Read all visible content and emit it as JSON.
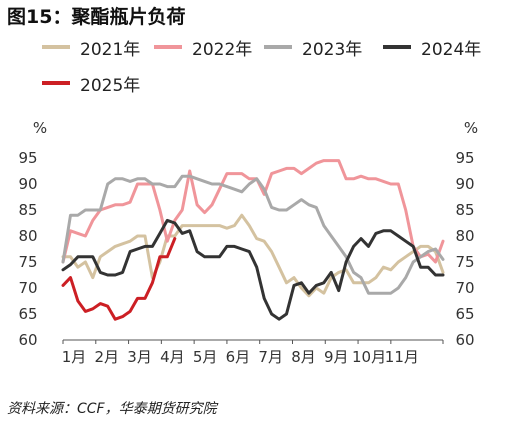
{
  "title": "图15：聚酯瓶片负荷",
  "source": "资料来源：CCF，华泰期货研究院",
  "chart_data": {
    "type": "line",
    "ylabel_left": "%",
    "ylabel_right": "%",
    "ylim": [
      60,
      95
    ],
    "yticks": [
      60,
      65,
      70,
      75,
      80,
      85,
      90,
      95
    ],
    "xlim": [
      1,
      52
    ],
    "xticks": [
      {
        "label": "1月",
        "week": 1
      },
      {
        "label": "2月",
        "week": 5.4
      },
      {
        "label": "3月",
        "week": 9.8
      },
      {
        "label": "4月",
        "week": 14.2
      },
      {
        "label": "5月",
        "week": 18.6
      },
      {
        "label": "6月",
        "week": 23
      },
      {
        "label": "7月",
        "week": 27.4
      },
      {
        "label": "8月",
        "week": 31.8
      },
      {
        "label": "9月",
        "week": 36.2
      },
      {
        "label": "10月",
        "week": 40.6
      },
      {
        "label": "11月",
        "week": 45
      }
    ],
    "grid": false,
    "legend_position": "top",
    "series": [
      {
        "name": "2021年",
        "color": "#d4c2a0",
        "values": [
          76,
          76,
          74,
          75,
          72,
          76,
          77,
          78,
          78.5,
          79,
          80,
          80,
          72,
          75,
          80,
          80,
          82,
          82,
          82,
          82,
          82,
          82,
          81.5,
          82,
          84,
          82,
          79.5,
          79,
          77,
          74,
          71,
          72,
          70,
          68.5,
          70,
          69,
          72,
          73,
          73.5,
          71,
          71,
          71,
          72,
          74,
          73.5,
          75,
          76,
          77,
          78,
          78,
          77,
          73
        ]
      },
      {
        "name": "2022年",
        "color": "#f0959a",
        "values": [
          75,
          81,
          80.5,
          80,
          83,
          85,
          85.5,
          86,
          86,
          86.5,
          90,
          90,
          90,
          85,
          79,
          83,
          85,
          92.5,
          86,
          84.5,
          86,
          89,
          92,
          92,
          92,
          91,
          91,
          88,
          92,
          92.5,
          93,
          93,
          92,
          93,
          94,
          94.5,
          94.5,
          94.5,
          91,
          91,
          91.5,
          91,
          91,
          90.5,
          90,
          90,
          85,
          78,
          76,
          76.5,
          75,
          79
        ]
      },
      {
        "name": "2023年",
        "color": "#a9a9a9",
        "values": [
          75,
          84,
          84,
          85,
          85,
          85,
          90,
          91,
          91,
          90.5,
          91,
          91,
          90,
          90,
          89.5,
          89.5,
          91.5,
          91.5,
          91,
          90.5,
          90,
          90,
          89.5,
          89,
          88.5,
          90,
          91,
          89,
          85.5,
          85,
          85,
          86,
          87,
          86,
          85.5,
          82,
          80,
          78,
          76,
          73,
          72,
          69,
          69,
          69,
          69,
          70,
          72,
          75,
          76,
          77,
          77.5,
          75.5
        ]
      },
      {
        "name": "2024年",
        "color": "#333333",
        "values": [
          73.5,
          74.5,
          76,
          76,
          76,
          73,
          72.5,
          72.5,
          73,
          77,
          77.5,
          78,
          78,
          80.5,
          83,
          82.5,
          80.5,
          81,
          77,
          76,
          76,
          76,
          78,
          78,
          77.5,
          77,
          74,
          68,
          65,
          64,
          65,
          70.5,
          71,
          69,
          70.5,
          71,
          73,
          69.5,
          75,
          78,
          79.5,
          78,
          80.5,
          81,
          81,
          80,
          79,
          78,
          74,
          74,
          72.5,
          72.5
        ]
      },
      {
        "name": "2025年",
        "color": "#cc1f24",
        "values": [
          70.5,
          72,
          67.5,
          65.5,
          66,
          67,
          66.5,
          64,
          64.5,
          65.5,
          68,
          68,
          71,
          76,
          76,
          79.5
        ]
      }
    ]
  }
}
